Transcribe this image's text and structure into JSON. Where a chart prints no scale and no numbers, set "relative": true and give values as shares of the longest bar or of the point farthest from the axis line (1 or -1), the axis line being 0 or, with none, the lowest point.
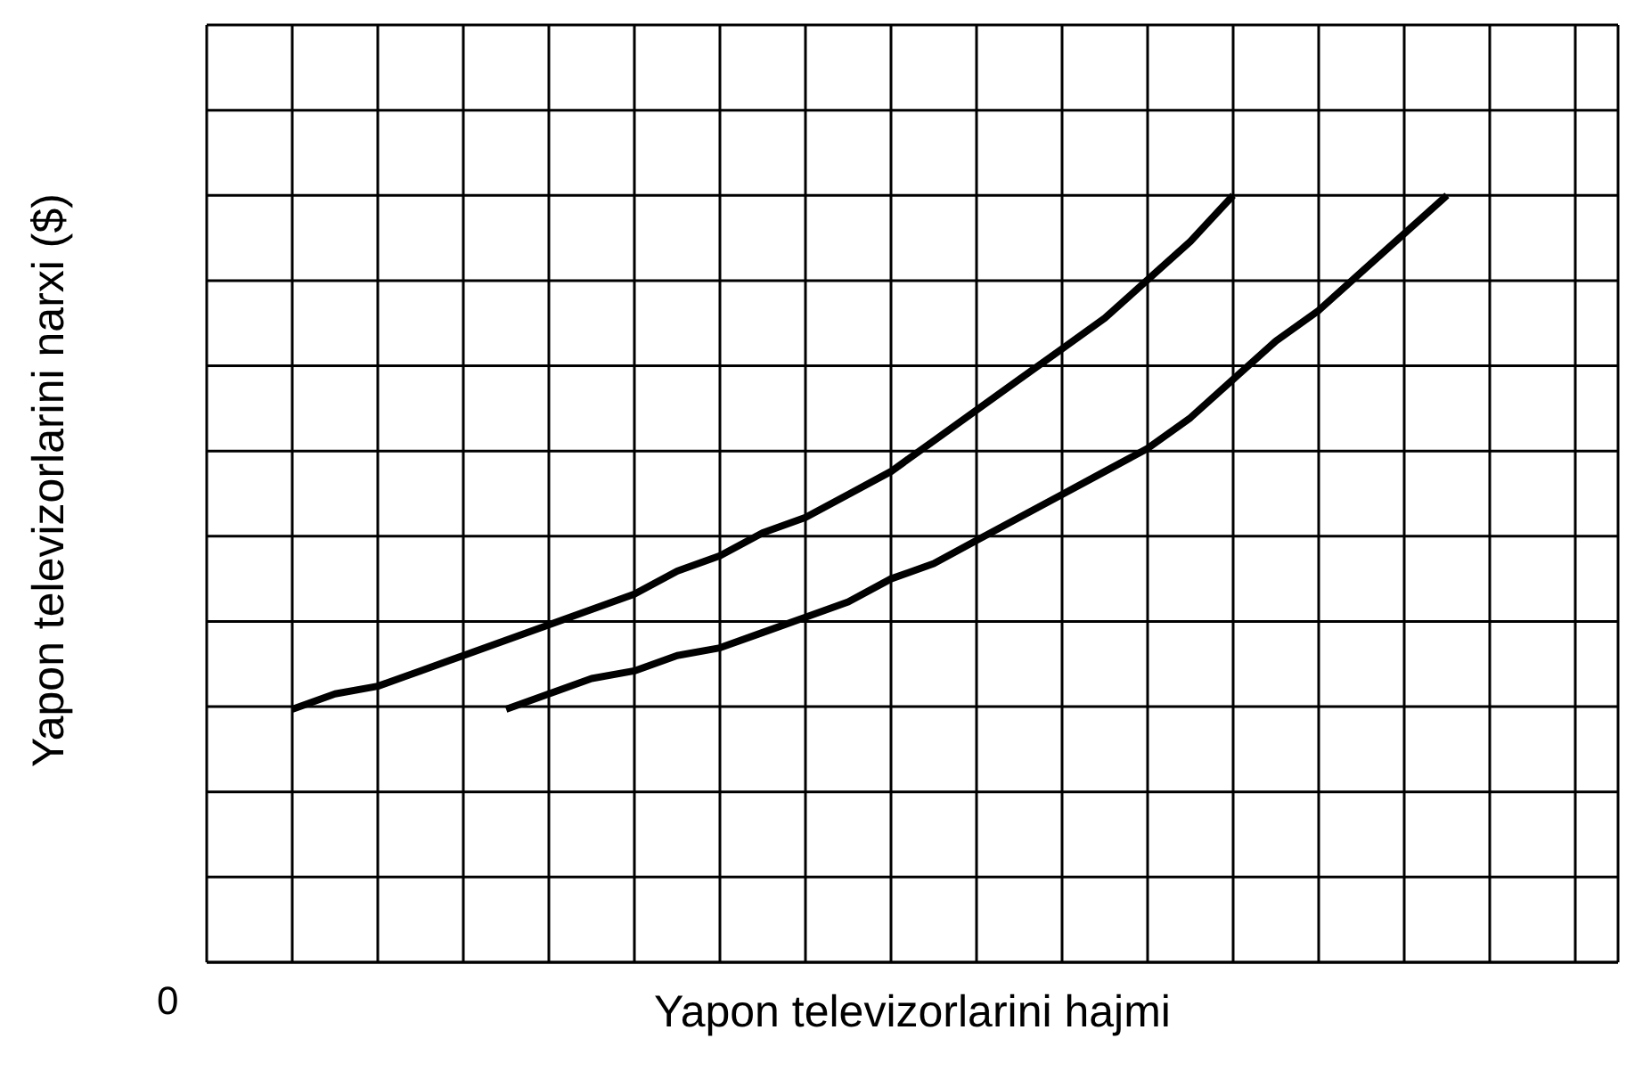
{
  "chart_data": {
    "type": "line",
    "relative": true,
    "xlabel": "Yapon televizorlarini hajmi",
    "ylabel": "Yapon televizorlarini narxi ($)",
    "annotations": [
      "0"
    ],
    "grid": true,
    "categories": [
      null,
      null,
      null,
      null,
      null,
      null,
      null,
      null,
      null,
      null,
      null,
      null,
      null,
      null,
      null,
      null,
      null,
      null,
      null,
      null,
      null,
      null,
      null,
      null,
      null,
      null,
      null,
      null,
      null,
      null,
      null,
      null,
      null,
      null
    ],
    "series": [
      {
        "color": "#000000",
        "values": [
          null,
          null,
          0.33,
          0.35,
          0.36,
          0.38,
          0.4,
          0.42,
          0.44,
          0.46,
          0.48,
          0.51,
          0.53,
          0.56,
          0.58,
          0.61,
          0.64,
          0.68,
          0.72,
          0.76,
          0.8,
          0.84,
          0.89,
          0.94,
          1,
          null,
          null,
          null,
          null,
          null,
          null,
          null,
          null,
          null
        ]
      },
      {
        "color": "#000000",
        "values": [
          null,
          null,
          null,
          null,
          null,
          null,
          null,
          0.33,
          0.35,
          0.37,
          0.38,
          0.4,
          0.41,
          0.43,
          0.45,
          0.47,
          0.5,
          0.52,
          0.55,
          0.58,
          0.61,
          0.64,
          0.67,
          0.71,
          0.76,
          0.81,
          0.85,
          0.9,
          0.95,
          1,
          null,
          null,
          null,
          null
        ]
      }
    ]
  }
}
